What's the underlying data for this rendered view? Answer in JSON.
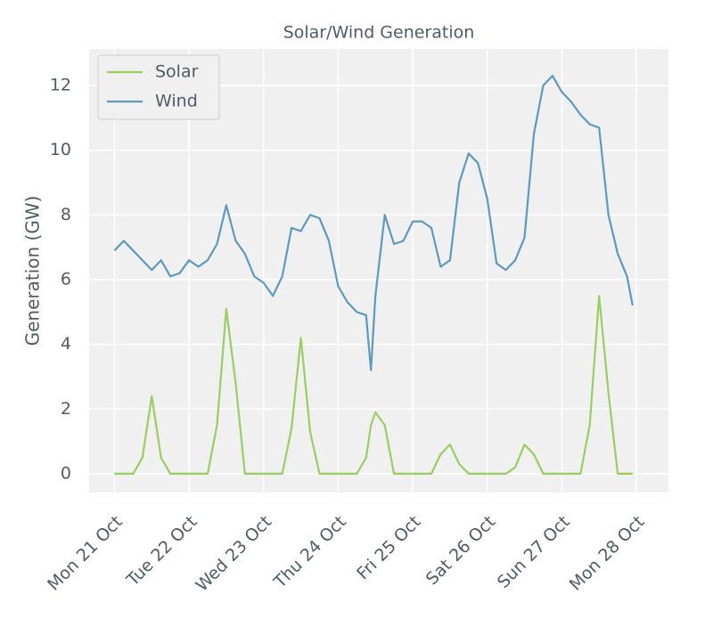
{
  "chart_data": {
    "type": "line",
    "title": "Solar/Wind Generation",
    "y_label": "Generation (GW)",
    "x": [
      0,
      0.125,
      0.25,
      0.375,
      0.5,
      0.625,
      0.75,
      0.875,
      1,
      1.125,
      1.25,
      1.375,
      1.5,
      1.625,
      1.75,
      1.875,
      2,
      2.125,
      2.25,
      2.375,
      2.5,
      2.625,
      2.75,
      2.875,
      3,
      3.125,
      3.25,
      3.375,
      3.44,
      3.5,
      3.625,
      3.75,
      3.875,
      4,
      4.125,
      4.25,
      4.375,
      4.5,
      4.625,
      4.75,
      4.875,
      5,
      5.125,
      5.25,
      5.375,
      5.5,
      5.625,
      5.75,
      5.875,
      6,
      6.125,
      6.25,
      6.375,
      6.5,
      6.625,
      6.75,
      6.875,
      6.95
    ],
    "series": [
      {
        "name": "Solar",
        "color": "#98cf5f",
        "values": [
          0,
          0,
          0,
          0.5,
          2.4,
          0.5,
          0,
          0,
          0,
          0,
          0,
          1.5,
          5.1,
          2.8,
          0,
          0,
          0,
          0,
          0,
          1.4,
          4.2,
          1.3,
          0,
          0,
          0,
          0,
          0,
          0.5,
          1.5,
          1.9,
          1.5,
          0,
          0,
          0,
          0,
          0,
          0.6,
          0.9,
          0.3,
          0,
          0,
          0,
          0,
          0,
          0.2,
          0.9,
          0.6,
          0,
          0,
          0,
          0,
          0,
          1.5,
          5.5,
          2.5,
          0,
          0,
          0
        ]
      },
      {
        "name": "Wind",
        "color": "#5b9bc0",
        "values": [
          6.9,
          7.2,
          6.9,
          6.6,
          6.3,
          6.6,
          6.1,
          6.2,
          6.6,
          6.4,
          6.6,
          7.1,
          8.3,
          7.2,
          6.8,
          6.1,
          5.9,
          5.5,
          6.1,
          7.6,
          7.5,
          8.0,
          7.9,
          7.2,
          5.8,
          5.3,
          5.0,
          4.9,
          3.2,
          5.5,
          8.0,
          7.1,
          7.2,
          7.8,
          7.8,
          7.6,
          6.4,
          6.6,
          9.0,
          9.9,
          9.6,
          8.5,
          6.5,
          6.3,
          6.6,
          7.3,
          10.5,
          12.0,
          12.3,
          11.8,
          11.5,
          11.1,
          10.8,
          10.7,
          8.0,
          6.8,
          6.1,
          5.2
        ]
      }
    ],
    "xlim": [
      -0.34,
      7.43
    ],
    "xticks": [
      {
        "value": 0,
        "label": "Mon 21 Oct"
      },
      {
        "value": 1,
        "label": "Tue 22 Oct"
      },
      {
        "value": 2,
        "label": "Wed 23 Oct"
      },
      {
        "value": 3,
        "label": "Thu 24 Oct"
      },
      {
        "value": 4,
        "label": "Fri 25 Oct"
      },
      {
        "value": 5,
        "label": "Sat 26 Oct"
      },
      {
        "value": 6,
        "label": "Sun 27 Oct"
      },
      {
        "value": 7,
        "label": "Mon 28 Oct"
      }
    ],
    "ylim": [
      -0.58,
      13.13
    ],
    "yticks": [
      0,
      2,
      4,
      6,
      8,
      10,
      12
    ],
    "grid": true,
    "legend": "upper left"
  }
}
